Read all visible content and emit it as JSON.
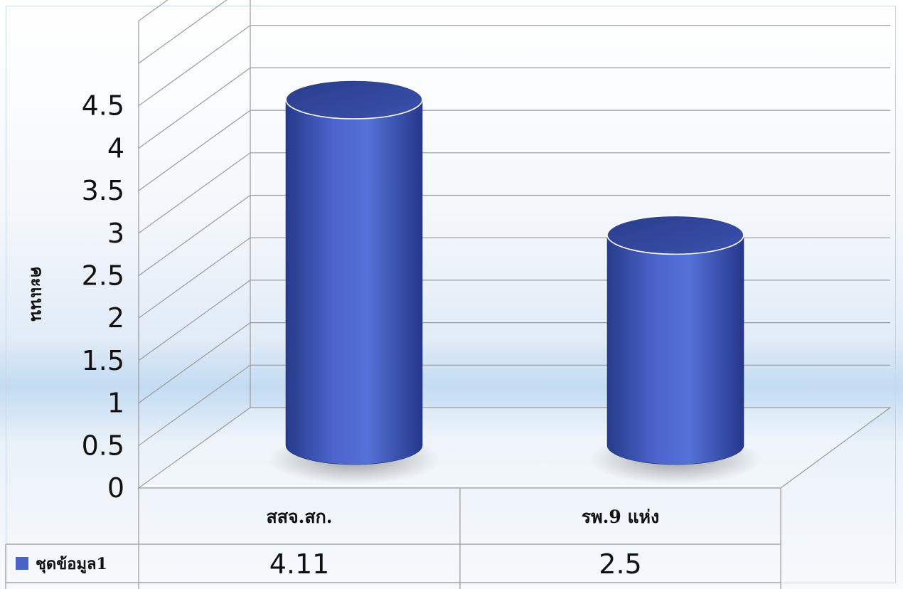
{
  "chart_data": {
    "type": "bar",
    "style": "3d-cylinder",
    "categories": [
      "สสจ.สก.",
      "รพ.9 แห่ง"
    ],
    "series": [
      {
        "name": "ชุดข้อมูล1",
        "values": [
          4.11,
          2.5
        ],
        "color": "#4a63c9"
      }
    ],
    "ylabel": "คะแนน",
    "ylim": [
      0,
      4.5
    ],
    "yticks": [
      "0",
      "0.5",
      "1",
      "1.5",
      "2",
      "2.5",
      "3",
      "3.5",
      "4",
      "4.5"
    ],
    "data_labels": [
      "4.11",
      "2.5"
    ],
    "grid": true,
    "legend": "data-table"
  }
}
